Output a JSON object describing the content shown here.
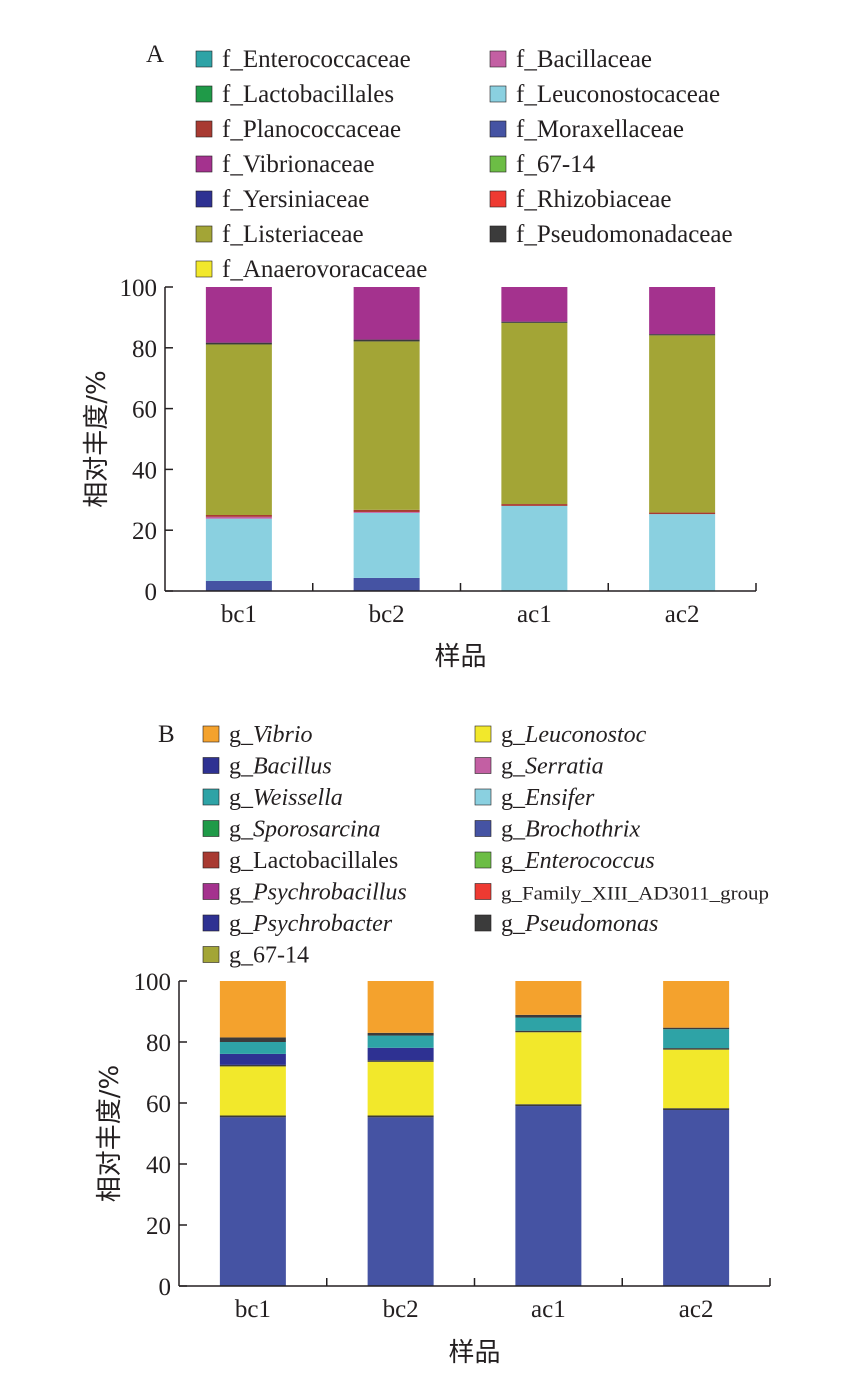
{
  "chart_data": [
    {
      "type": "bar",
      "stacked": true,
      "panel_label": "A",
      "categories": [
        "bc1",
        "bc2",
        "ac1",
        "ac2"
      ],
      "xlabel": "样品",
      "ylabel": "相对丰度/%",
      "ylim": [
        0,
        100
      ],
      "yticks": [
        0,
        20,
        40,
        60,
        80,
        100
      ],
      "grid": false,
      "legend_position": "top",
      "legend": [
        {
          "name": "f_Enterococcaceae",
          "color": "#2ea3a6",
          "italic": ""
        },
        {
          "name": "f_Lactobacillales",
          "color": "#1f9a48",
          "italic": ""
        },
        {
          "name": "f_Planococcaceae",
          "color": "#a83a32",
          "italic": ""
        },
        {
          "name": "f_Vibrionaceae",
          "color": "#a4328e",
          "italic": ""
        },
        {
          "name": "f_Yersiniaceae",
          "color": "#2e3192",
          "italic": ""
        },
        {
          "name": "f_Listeriaceae",
          "color": "#a3a536",
          "italic": ""
        },
        {
          "name": "f_Anaerovoracaceae",
          "color": "#f2e82b",
          "italic": ""
        },
        {
          "name": "f_Bacillaceae",
          "color": "#c35fa3",
          "italic": ""
        },
        {
          "name": "f_Leuconostocaceae",
          "color": "#8ad0e0",
          "italic": ""
        },
        {
          "name": "f_Moraxellaceae",
          "color": "#4553a3",
          "italic": ""
        },
        {
          "name": "f_67-14",
          "color": "#6cbd45",
          "italic": ""
        },
        {
          "name": "f_Rhizobiaceae",
          "color": "#ee3a32",
          "italic": ""
        },
        {
          "name": "f_Pseudomonadaceae",
          "color": "#3b3b3b",
          "italic": ""
        }
      ],
      "series": [
        {
          "color": "#4553a3",
          "values": [
            3.3,
            4.3,
            0.0,
            0.0
          ]
        },
        {
          "color": "#8ad0e0",
          "values": [
            20.5,
            21.4,
            28.0,
            25.3
          ]
        },
        {
          "color": "#c35fa3",
          "values": [
            0.6,
            0.3,
            0.0,
            0.0
          ]
        },
        {
          "color": "#a83a32",
          "values": [
            0.6,
            0.7,
            0.6,
            0.5
          ]
        },
        {
          "color": "#a3a536",
          "values": [
            56.1,
            55.4,
            59.6,
            58.3
          ]
        },
        {
          "color": "#3b3b3b",
          "values": [
            0.6,
            0.6,
            0.4,
            0.4
          ]
        },
        {
          "color": "#a4328e",
          "values": [
            18.3,
            17.3,
            11.4,
            15.5
          ]
        }
      ]
    },
    {
      "type": "bar",
      "stacked": true,
      "panel_label": "B",
      "categories": [
        "bc1",
        "bc2",
        "ac1",
        "ac2"
      ],
      "xlabel": "样品",
      "ylabel": "相对丰度/%",
      "ylim": [
        0,
        100
      ],
      "yticks": [
        0,
        20,
        40,
        60,
        80,
        100
      ],
      "grid": false,
      "legend_position": "top",
      "legend": [
        {
          "name": "g_",
          "italic": "Vibrio",
          "color": "#f4a22d"
        },
        {
          "name": "g_",
          "italic": "Bacillus",
          "color": "#2e3192"
        },
        {
          "name": "g_",
          "italic": "Weissella",
          "color": "#2ea3a6"
        },
        {
          "name": "g_",
          "italic": "Sporosarcina",
          "color": "#1f9a48"
        },
        {
          "name": "g_Lactobacillales",
          "italic": "",
          "color": "#a83a32"
        },
        {
          "name": "g_",
          "italic": "Psychrobacillus",
          "color": "#a4328e"
        },
        {
          "name": "g_",
          "italic": "Psychrobacter",
          "color": "#2e3192"
        },
        {
          "name": "g_67-14",
          "italic": "",
          "color": "#a3a536"
        },
        {
          "name": "g_",
          "italic": "Leuconostoc",
          "color": "#f2e82b"
        },
        {
          "name": "g_",
          "italic": "Serratia",
          "color": "#c35fa3"
        },
        {
          "name": "g_",
          "italic": "Ensifer",
          "color": "#8ad0e0"
        },
        {
          "name": "g_",
          "italic": "Brochothrix",
          "color": "#4553a3"
        },
        {
          "name": "g_",
          "italic": "Enterococcus",
          "color": "#6cbd45"
        },
        {
          "name": "g_Family_XIII_AD3011_group",
          "italic": "",
          "color": "#ee3a32"
        },
        {
          "name": "g_",
          "italic": "Pseudomonas",
          "color": "#3b3b3b"
        }
      ],
      "series": [
        {
          "color": "#4553a3",
          "values": [
            55.3,
            55.3,
            59.0,
            57.7
          ]
        },
        {
          "color": "#3b3b3b",
          "values": [
            0.6,
            0.6,
            0.6,
            0.6
          ]
        },
        {
          "color": "#f2e82b",
          "values": [
            16.1,
            17.6,
            23.6,
            19.2
          ]
        },
        {
          "color": "#3b3b3b",
          "values": [
            0.5,
            0.5,
            0.5,
            0.5
          ]
        },
        {
          "color": "#2e3192",
          "values": [
            3.6,
            4.1,
            0.0,
            0.0
          ]
        },
        {
          "color": "#2ea3a6",
          "values": [
            3.9,
            4.0,
            4.3,
            6.2
          ]
        },
        {
          "color": "#3b3b3b",
          "values": [
            1.5,
            0.9,
            0.9,
            0.5
          ]
        },
        {
          "color": "#f4a22d",
          "values": [
            18.5,
            17.0,
            11.1,
            15.3
          ]
        }
      ]
    }
  ]
}
